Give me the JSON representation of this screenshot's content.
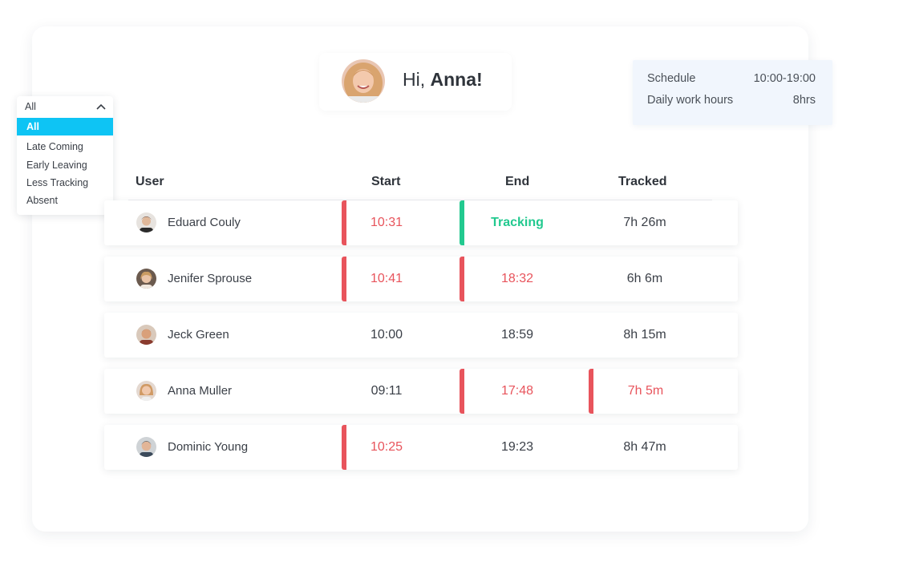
{
  "greeting": {
    "prefix": "Hi,",
    "name": "Anna!"
  },
  "schedule": {
    "schedule_label": "Schedule",
    "schedule_value": "10:00-19:00",
    "hours_label": "Daily work hours",
    "hours_value": "8hrs"
  },
  "filter": {
    "selected": "All",
    "options": [
      "All",
      "Late Coming",
      "Early Leaving",
      "Less Tracking",
      "Absent"
    ],
    "active_index": 0
  },
  "table": {
    "columns": [
      "User",
      "Start",
      "End",
      "Tracked"
    ],
    "rows": [
      {
        "name": "Eduard Couly",
        "start": "10:31",
        "end": "Tracking",
        "tracked": "7h 26m",
        "start_flag": "late",
        "end_flag": "tracking",
        "tracked_flag": ""
      },
      {
        "name": "Jenifer Sprouse",
        "start": "10:41",
        "end": "18:32",
        "tracked": "6h 6m",
        "start_flag": "late",
        "end_flag": "early",
        "tracked_flag": ""
      },
      {
        "name": "Jeck Green",
        "start": "10:00",
        "end": "18:59",
        "tracked": "8h 15m",
        "start_flag": "",
        "end_flag": "",
        "tracked_flag": ""
      },
      {
        "name": "Anna Muller",
        "start": "09:11",
        "end": "17:48",
        "tracked": "7h 5m",
        "start_flag": "",
        "end_flag": "early",
        "tracked_flag": "less"
      },
      {
        "name": "Dominic Young",
        "start": "10:25",
        "end": "19:23",
        "tracked": "8h 47m",
        "start_flag": "late",
        "end_flag": "",
        "tracked_flag": ""
      }
    ]
  },
  "colors": {
    "accent": "#0ec4f4",
    "alert": "#e8545c",
    "tracking": "#22c98f"
  }
}
